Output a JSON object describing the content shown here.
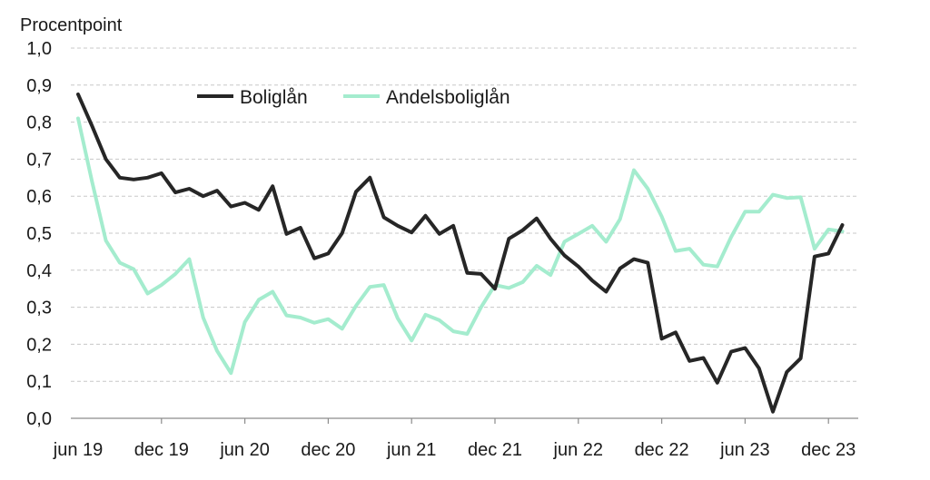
{
  "chart_data": {
    "type": "line",
    "ylabel": "Procentpoint",
    "xlabel": "",
    "ylim": [
      0,
      1.0
    ],
    "y_ticks": [
      "0,0",
      "0,1",
      "0,2",
      "0,3",
      "0,4",
      "0,5",
      "0,6",
      "0,7",
      "0,8",
      "0,9",
      "1,0"
    ],
    "x_tick_labels": [
      "jun 19",
      "dec 19",
      "jun 20",
      "dec 20",
      "jun 21",
      "dec 21",
      "jun 22",
      "dec 22",
      "jun 23",
      "dec 23"
    ],
    "x": [
      "2019-06",
      "2019-07",
      "2019-08",
      "2019-09",
      "2019-10",
      "2019-11",
      "2019-12",
      "2020-01",
      "2020-02",
      "2020-03",
      "2020-04",
      "2020-05",
      "2020-06",
      "2020-07",
      "2020-08",
      "2020-09",
      "2020-10",
      "2020-11",
      "2020-12",
      "2021-01",
      "2021-02",
      "2021-03",
      "2021-04",
      "2021-05",
      "2021-06",
      "2021-07",
      "2021-08",
      "2021-09",
      "2021-10",
      "2021-11",
      "2021-12",
      "2022-01",
      "2022-02",
      "2022-03",
      "2022-04",
      "2022-05",
      "2022-06",
      "2022-07",
      "2022-08",
      "2022-09",
      "2022-10",
      "2022-11",
      "2022-12",
      "2023-01",
      "2023-02",
      "2023-03",
      "2023-04",
      "2023-05",
      "2023-06",
      "2023-07",
      "2023-08",
      "2023-09",
      "2023-10",
      "2023-11",
      "2023-12",
      "2024-01"
    ],
    "grid": true,
    "legend_position": "top",
    "series": [
      {
        "name": "Boliglån",
        "color": "#262626",
        "values": [
          0.875,
          0.79,
          0.7,
          0.65,
          0.645,
          0.65,
          0.662,
          0.61,
          0.62,
          0.6,
          0.615,
          0.572,
          0.582,
          0.563,
          0.627,
          0.498,
          0.515,
          0.432,
          0.445,
          0.5,
          0.612,
          0.65,
          0.543,
          0.52,
          0.502,
          0.547,
          0.498,
          0.52,
          0.393,
          0.39,
          0.35,
          0.485,
          0.508,
          0.54,
          0.485,
          0.44,
          0.41,
          0.372,
          0.342,
          0.405,
          0.43,
          0.42,
          0.215,
          0.232,
          0.155,
          0.163,
          0.096,
          0.18,
          0.19,
          0.135,
          0.018,
          0.125,
          0.162,
          0.437,
          0.445,
          0.522
        ]
      },
      {
        "name": "Andelsboliglån",
        "color": "#a4ecce",
        "values": [
          0.81,
          0.64,
          0.48,
          0.42,
          0.403,
          0.337,
          0.36,
          0.39,
          0.43,
          0.272,
          0.182,
          0.122,
          0.26,
          0.32,
          0.342,
          0.278,
          0.272,
          0.258,
          0.268,
          0.242,
          0.304,
          0.355,
          0.36,
          0.27,
          0.21,
          0.28,
          0.265,
          0.235,
          0.228,
          0.3,
          0.36,
          0.352,
          0.368,
          0.412,
          0.387,
          0.477,
          0.498,
          0.52,
          0.477,
          0.538,
          0.67,
          0.62,
          0.545,
          0.452,
          0.458,
          0.415,
          0.41,
          0.49,
          0.558,
          0.558,
          0.604,
          0.595,
          0.597,
          0.458,
          0.51,
          0.505
        ]
      }
    ]
  }
}
